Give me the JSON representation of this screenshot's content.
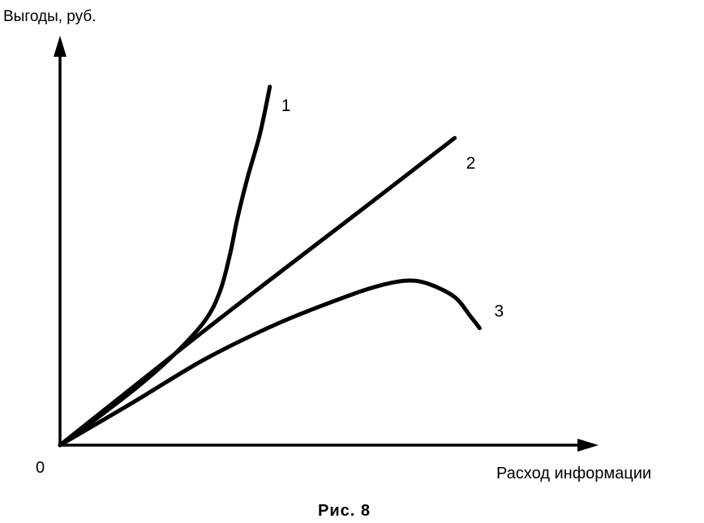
{
  "chart_data": {
    "type": "line",
    "title": "",
    "ylabel": "Выгоды, руб.",
    "xlabel": "Расход информации",
    "origin_label": "0",
    "caption": "Рис. 8",
    "xlim": [
      0,
      10
    ],
    "ylim": [
      0,
      10
    ],
    "grid": false,
    "legend": "none",
    "series": [
      {
        "label": "1",
        "points": [
          [
            0,
            0
          ],
          [
            0.8,
            0.8
          ],
          [
            1.6,
            1.65
          ],
          [
            2.3,
            2.5
          ],
          [
            2.9,
            3.4
          ],
          [
            3.2,
            4.2
          ],
          [
            3.4,
            5.2
          ],
          [
            3.55,
            6.2
          ],
          [
            3.75,
            7.3
          ],
          [
            4.0,
            8.5
          ],
          [
            4.2,
            9.8
          ]
        ]
      },
      {
        "label": "2",
        "points": [
          [
            0,
            0
          ],
          [
            3,
            3.25
          ],
          [
            6,
            6.4
          ],
          [
            7.9,
            8.4
          ]
        ]
      },
      {
        "label": "3",
        "points": [
          [
            0,
            0
          ],
          [
            1.5,
            1.2
          ],
          [
            2.9,
            2.35
          ],
          [
            4.4,
            3.35
          ],
          [
            5.8,
            4.1
          ],
          [
            6.5,
            4.4
          ],
          [
            7.0,
            4.5
          ],
          [
            7.4,
            4.4
          ],
          [
            7.9,
            4.05
          ],
          [
            8.2,
            3.55
          ],
          [
            8.4,
            3.2
          ]
        ]
      }
    ]
  }
}
